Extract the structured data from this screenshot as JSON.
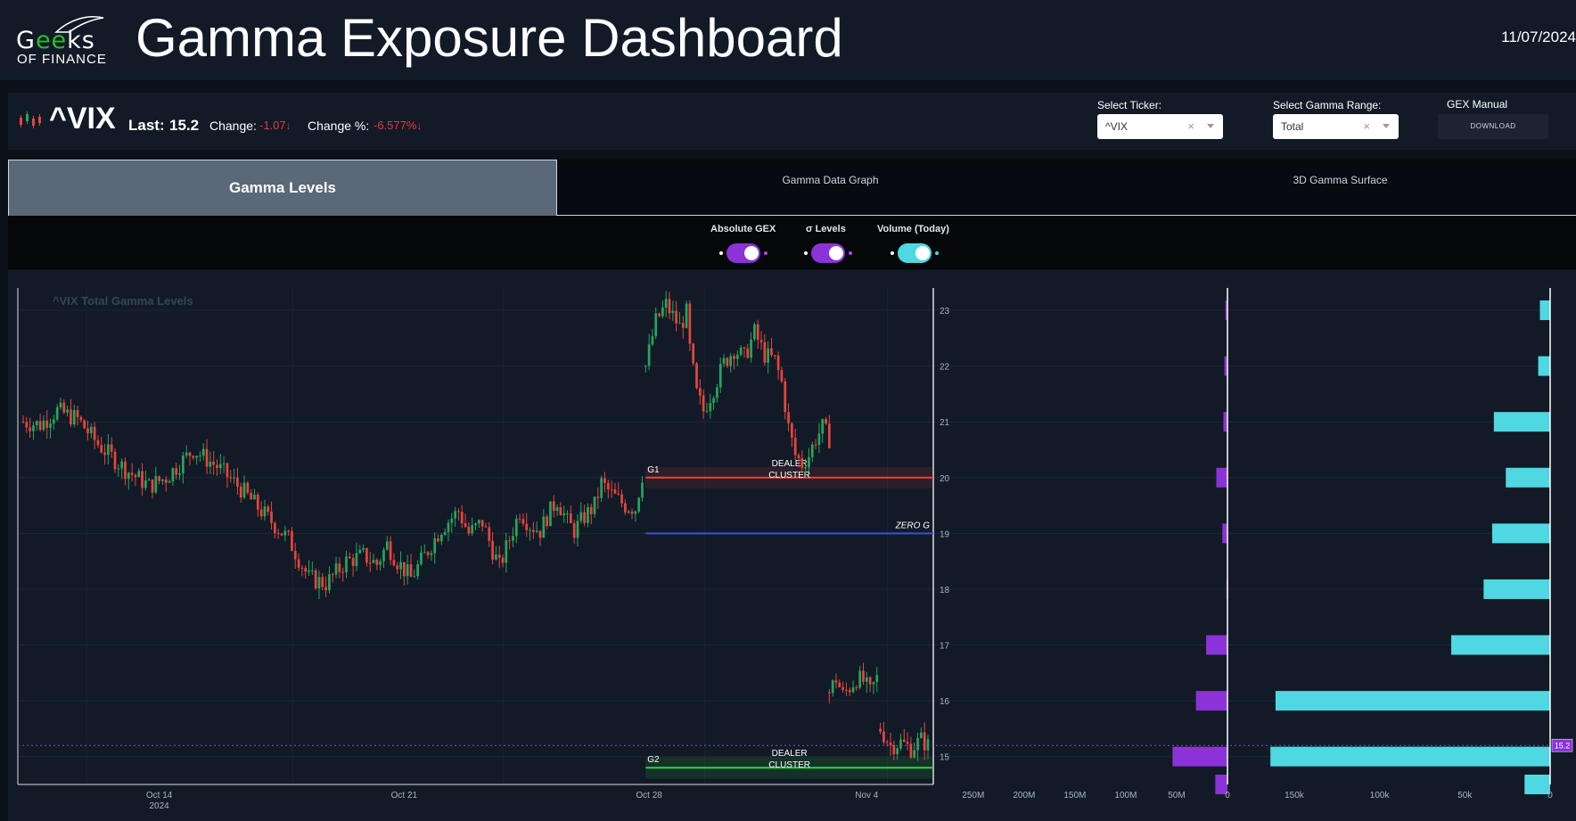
{
  "header": {
    "logo_text_main": "Geeks",
    "logo_text_sub": "OF FINANCE",
    "title": "Gamma Exposure Dashboard",
    "date": "11/07/2024"
  },
  "ticker": {
    "symbol": "^VIX",
    "last_label": "Last:",
    "last": "15.2",
    "change_label": "Change:",
    "change": "-1.07",
    "change_pct_label": "Change %:",
    "change_pct": "-6.577%"
  },
  "controls": {
    "select_ticker_label": "Select Ticker:",
    "select_ticker_value": "^VIX",
    "select_range_label": "Select Gamma Range:",
    "select_range_value": "Total",
    "gex_manual_label": "GEX Manual",
    "download_label": "DOWNLOAD",
    "clear_symbol": "×"
  },
  "tabs": [
    {
      "label": "Gamma Levels",
      "active": true
    },
    {
      "label": "Gamma Data Graph",
      "active": false
    },
    {
      "label": "3D Gamma Surface",
      "active": false
    }
  ],
  "toggles": [
    {
      "label": "Absolute GEX",
      "on": true,
      "color": "#8b32d8"
    },
    {
      "label": "σ Levels",
      "on": true,
      "color": "#8b32d8"
    },
    {
      "label": "Volume (Today)",
      "on": true,
      "color": "#4fd8e2"
    }
  ],
  "chart_data": {
    "type": "candlestick",
    "title": "^VIX Total Gamma Levels",
    "y_ticks": [
      23,
      22,
      21,
      20,
      19,
      18,
      17,
      16,
      15
    ],
    "ylim": [
      14.5,
      23.4
    ],
    "x_ticks": [
      {
        "label": "Oct 14",
        "sub": "2024"
      },
      {
        "label": "Oct 21",
        "sub": ""
      },
      {
        "label": "Oct 28",
        "sub": ""
      },
      {
        "label": "Nov 4",
        "sub": ""
      }
    ],
    "colors": {
      "up": "#26a65b",
      "down": "#e8453c"
    },
    "price_path": [
      [
        0,
        21.0
      ],
      [
        5,
        20.95
      ],
      [
        10,
        21.2
      ],
      [
        16,
        21.05
      ],
      [
        22,
        20.6
      ],
      [
        30,
        20.15
      ],
      [
        37,
        19.85
      ],
      [
        42,
        20.0
      ],
      [
        50,
        20.5
      ],
      [
        57,
        20.2
      ],
      [
        64,
        19.8
      ],
      [
        70,
        19.4
      ],
      [
        78,
        18.9
      ],
      [
        84,
        18.2
      ],
      [
        89,
        18.1
      ],
      [
        95,
        18.5
      ],
      [
        100,
        18.6
      ],
      [
        104,
        18.45
      ],
      [
        107,
        18.8
      ],
      [
        110,
        18.5
      ],
      [
        114,
        18.2
      ],
      [
        118,
        18.6
      ],
      [
        123,
        19.1
      ],
      [
        128,
        19.4
      ],
      [
        131,
        19.0
      ],
      [
        135,
        19.2
      ],
      [
        138,
        18.7
      ],
      [
        140,
        18.4
      ],
      [
        143,
        18.9
      ],
      [
        146,
        19.4
      ],
      [
        149,
        19.15
      ],
      [
        152,
        19.05
      ],
      [
        154,
        19.3
      ],
      [
        157,
        19.6
      ],
      [
        160,
        19.2
      ],
      [
        162,
        19.05
      ],
      [
        165,
        19.3
      ],
      [
        168,
        19.5
      ],
      [
        170,
        19.9
      ],
      [
        173,
        19.7
      ],
      [
        177,
        19.5
      ],
      [
        180,
        19.45
      ],
      [
        182,
        20.05
      ]
    ],
    "price_path_2": [
      [
        183,
        22.0
      ],
      [
        186,
        22.8
      ],
      [
        189,
        23.1
      ],
      [
        191,
        22.9
      ],
      [
        193,
        22.7
      ],
      [
        195,
        22.95
      ],
      [
        196,
        22.3
      ],
      [
        198,
        21.5
      ],
      [
        200,
        21.2
      ],
      [
        203,
        21.6
      ],
      [
        206,
        22.05
      ],
      [
        209,
        22.3
      ],
      [
        212,
        22.15
      ],
      [
        215,
        22.6
      ],
      [
        218,
        22.2
      ],
      [
        221,
        22.1
      ],
      [
        223,
        21.7
      ],
      [
        225,
        20.9
      ],
      [
        227,
        20.4
      ],
      [
        229,
        20.25
      ],
      [
        231,
        20.4
      ],
      [
        233,
        20.7
      ],
      [
        235,
        20.9
      ],
      [
        237,
        20.7
      ]
    ],
    "price_path_3": [
      [
        237,
        16.15
      ],
      [
        239,
        16.4
      ],
      [
        241,
        16.1
      ],
      [
        243,
        16.25
      ],
      [
        245,
        16.4
      ],
      [
        247,
        16.35
      ],
      [
        249,
        16.15
      ],
      [
        251,
        16.4
      ]
    ],
    "price_path_4": [
      [
        252,
        15.5
      ],
      [
        255,
        15.2
      ],
      [
        258,
        15.25
      ],
      [
        261,
        15.15
      ],
      [
        264,
        15.3
      ],
      [
        266,
        15.2
      ]
    ],
    "levels": [
      {
        "name": "G1",
        "label": "DEALER CLUSTER",
        "value": 20.0,
        "color": "#e8453c"
      },
      {
        "name": "ZERO G",
        "label": "",
        "value": 19.0,
        "color": "#3c4fd8"
      },
      {
        "name": "G2",
        "label": "DEALER CLUSTER",
        "value": 14.8,
        "color": "#2bd83a"
      }
    ],
    "dealer_label": [
      "DEALER",
      "CLUSTER"
    ],
    "last_price": 15.2,
    "last_price_tag": "15.2",
    "gex_bars": {
      "strikes": [
        23,
        22,
        21,
        20,
        19,
        18,
        17,
        16,
        15,
        14.5
      ],
      "values": [
        2,
        3,
        4,
        11,
        5,
        1,
        21,
        31,
        54,
        12
      ],
      "ticks": [
        "250M",
        "200M",
        "150M",
        "100M",
        "50M",
        "0"
      ],
      "tick_values": [
        250,
        200,
        150,
        100,
        50,
        0
      ],
      "color": "#8b32d8"
    },
    "volume_bars": {
      "strikes": [
        23,
        22,
        21,
        20,
        19,
        18,
        17,
        16,
        15,
        14.5
      ],
      "values": [
        6,
        7,
        33,
        26,
        34,
        39,
        58,
        161,
        164,
        15
      ],
      "ticks": [
        "150k",
        "100k",
        "50k",
        "0"
      ],
      "tick_values": [
        150,
        100,
        50,
        0
      ],
      "color": "#4fd8e2"
    }
  }
}
